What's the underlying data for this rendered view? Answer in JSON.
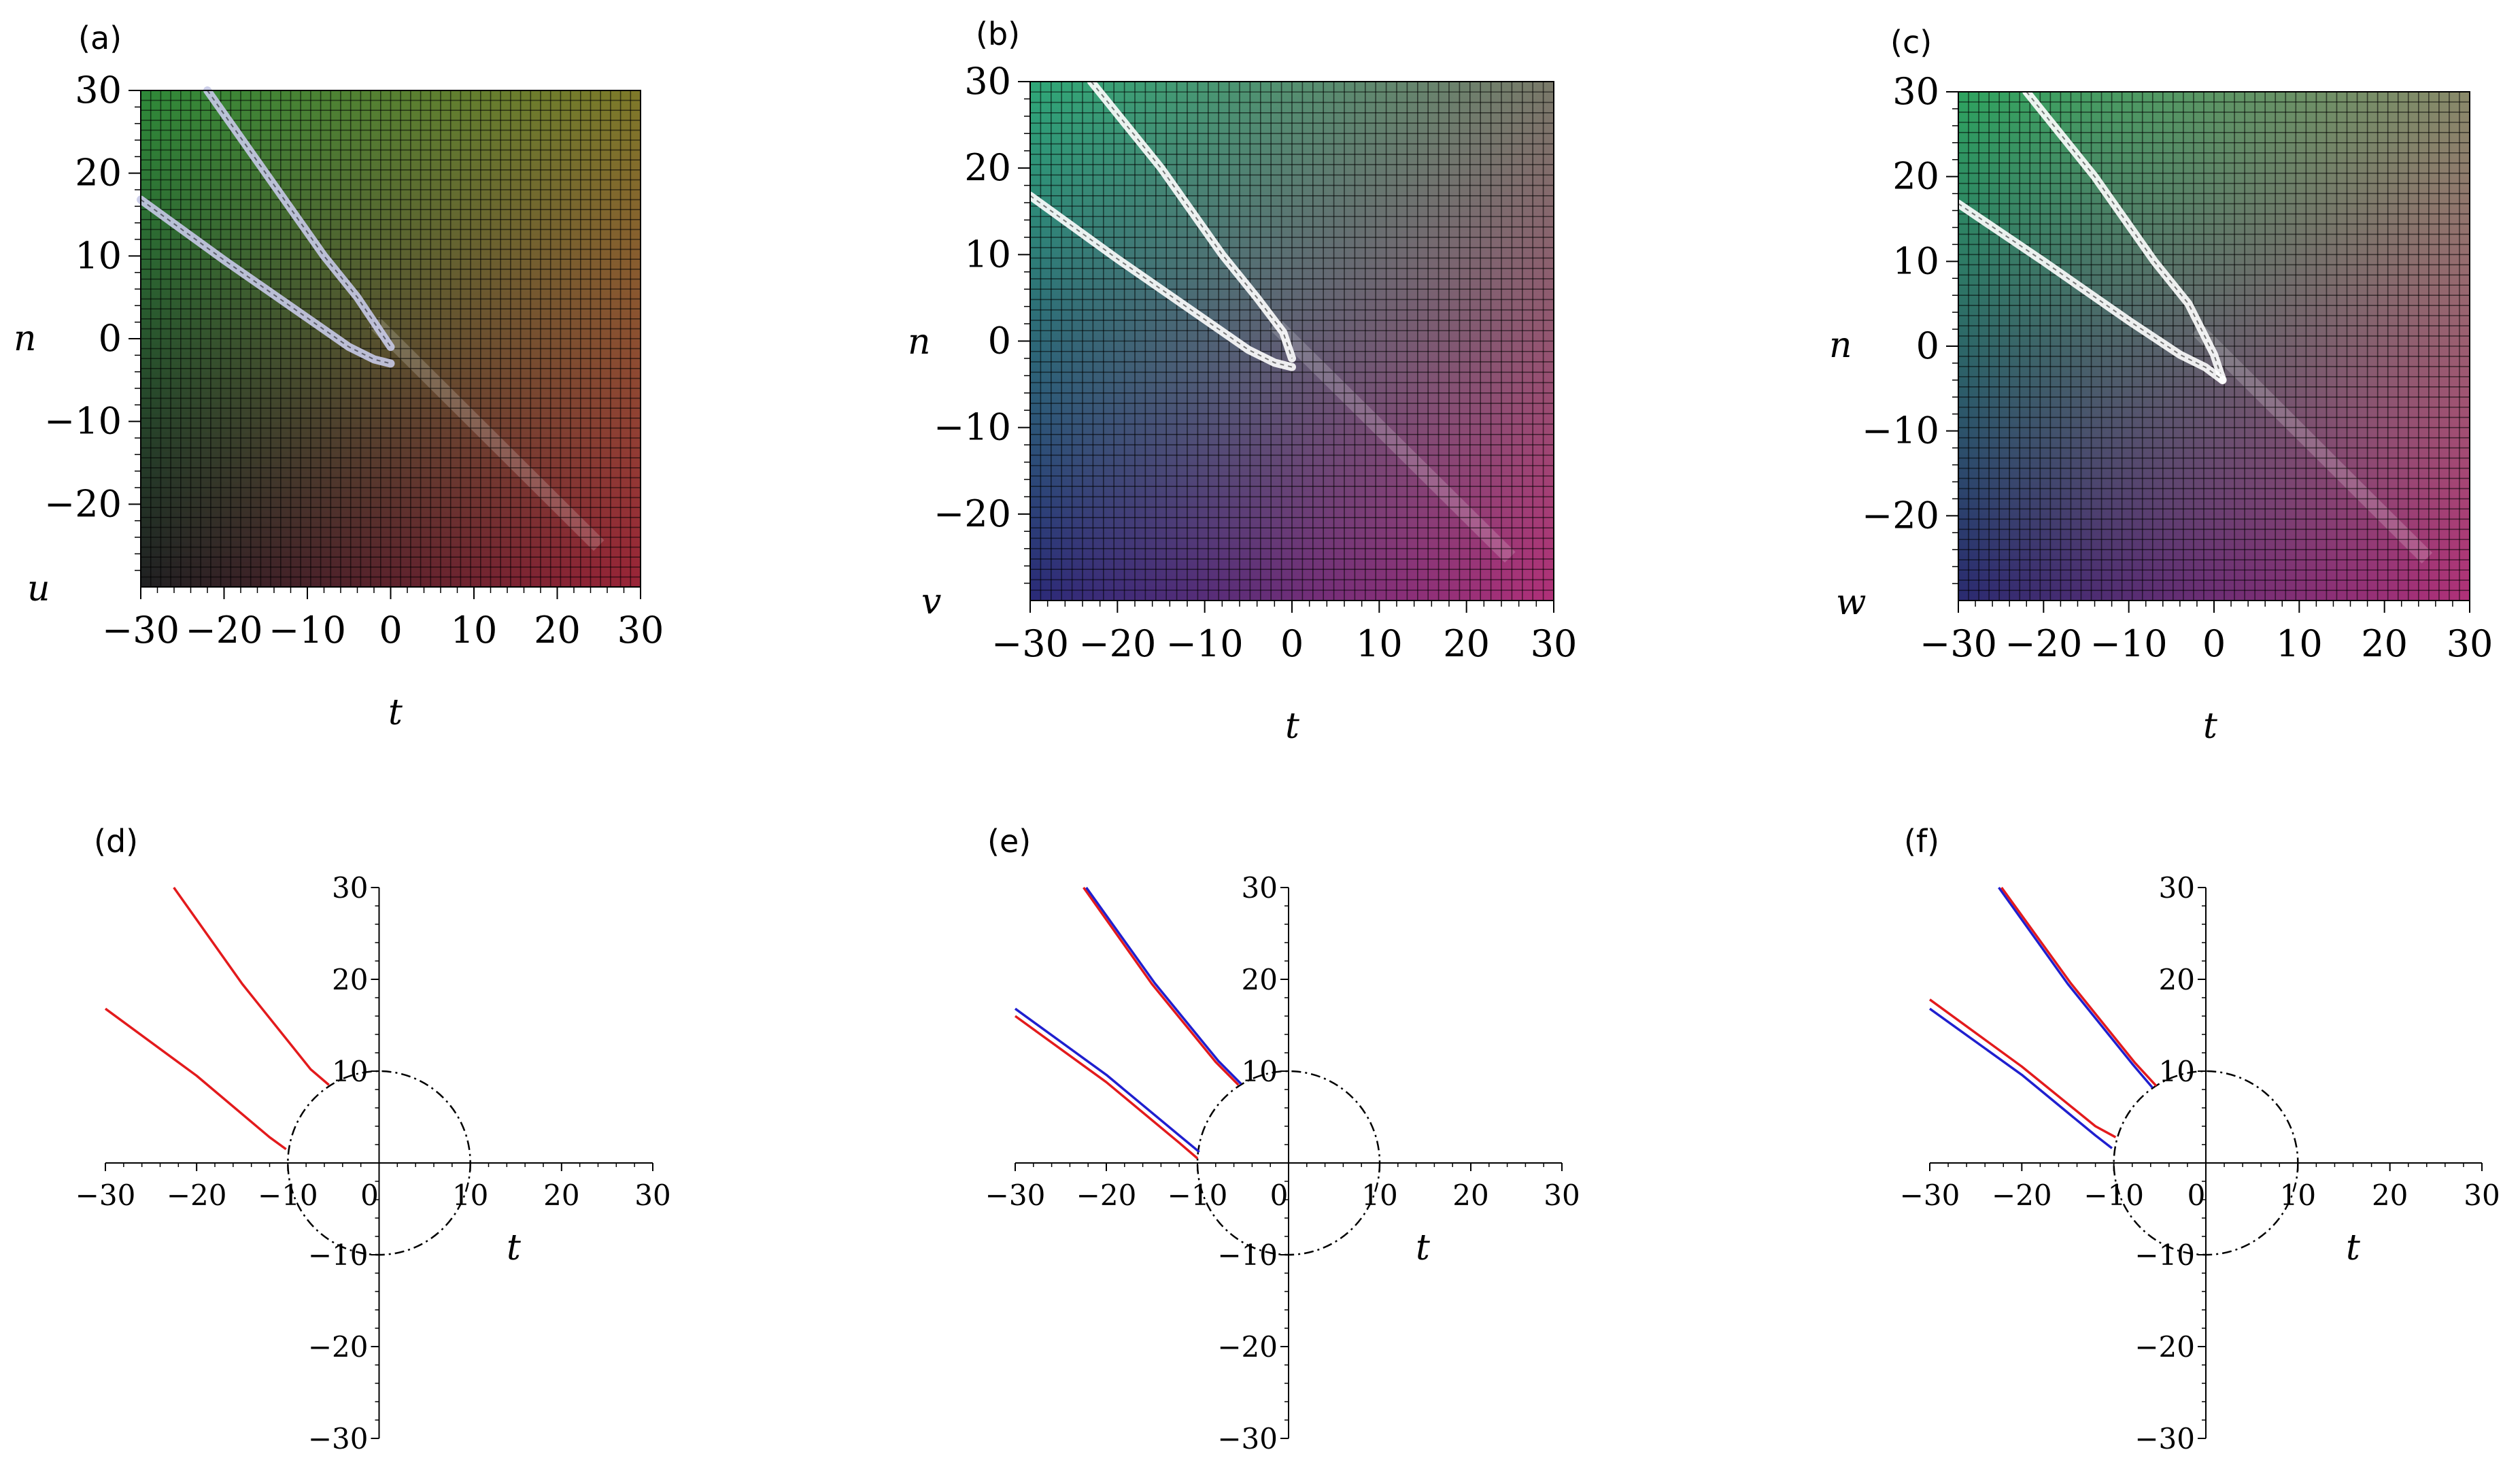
{
  "colors": {
    "density_u": {
      "tl": "#2f8a3a",
      "tr": "#7f7a2a",
      "bl": "#202022",
      "br": "#9a2438"
    },
    "density_v": {
      "tl": "#2fa878",
      "tr": "#7a7a6a",
      "bl": "#2a2a78",
      "br": "#b03078"
    },
    "density_w": {
      "tl": "#2fa460",
      "tr": "#8a8a6a",
      "bl": "#2a2a70",
      "br": "#b03078"
    },
    "ridge_u": "#c8cae8",
    "ridge_vw": "#ffffff",
    "red": "#e31a1c",
    "blue": "#1f1fcf",
    "circle": "#000000"
  },
  "chart_data": [
    {
      "panel": "(a)",
      "type": "heatmap",
      "xlabel": "t",
      "ylabel": "n",
      "zlabel": "u",
      "xlim": [
        -30,
        30
      ],
      "ylim": [
        -30,
        30
      ],
      "xticks": [
        "−30",
        "−20",
        "−10",
        "0",
        "10",
        "20",
        "30"
      ],
      "yticks": [
        "−20",
        "−10",
        "0",
        "10",
        "20",
        "30"
      ],
      "ridges": [
        {
          "x": [
            -22,
            -15,
            -8,
            -4,
            -2,
            0
          ],
          "y": [
            30,
            20,
            10,
            5,
            2,
            -1
          ]
        },
        {
          "x": [
            -30,
            -20,
            -10,
            -5,
            -2,
            0
          ],
          "y": [
            16.8,
            9.5,
            2.5,
            -1,
            -2.5,
            -3
          ]
        }
      ]
    },
    {
      "panel": "(b)",
      "type": "heatmap",
      "xlabel": "t",
      "ylabel": "n",
      "zlabel": "v",
      "xlim": [
        -30,
        30
      ],
      "ylim": [
        -30,
        30
      ],
      "xticks": [
        "−30",
        "−20",
        "−10",
        "0",
        "10",
        "20",
        "30"
      ],
      "yticks": [
        "−20",
        "−10",
        "0",
        "10",
        "20",
        "30"
      ],
      "ridges": [
        {
          "x": [
            -23,
            -15,
            -8,
            -4,
            -1,
            0
          ],
          "y": [
            30,
            20,
            10,
            5,
            1,
            -2
          ]
        },
        {
          "x": [
            -30,
            -20,
            -10,
            -5,
            -2,
            0
          ],
          "y": [
            16.8,
            9.5,
            2.5,
            -1,
            -2.5,
            -3
          ]
        }
      ]
    },
    {
      "panel": "(c)",
      "type": "heatmap",
      "xlabel": "t",
      "ylabel": "n",
      "zlabel": "w",
      "xlim": [
        -30,
        30
      ],
      "ylim": [
        -30,
        30
      ],
      "xticks": [
        "−30",
        "−20",
        "−10",
        "0",
        "10",
        "20",
        "30"
      ],
      "yticks": [
        "−20",
        "−10",
        "0",
        "10",
        "20",
        "30"
      ],
      "ridges": [
        {
          "x": [
            -22,
            -14,
            -7,
            -3,
            0,
            1
          ],
          "y": [
            30,
            20,
            10,
            5,
            -1,
            -4
          ]
        },
        {
          "x": [
            -30,
            -20,
            -10,
            -4,
            -1,
            1
          ],
          "y": [
            16.8,
            10,
            3,
            -1,
            -2.5,
            -4
          ]
        }
      ]
    },
    {
      "panel": "(d)",
      "type": "line",
      "xlabel": "t",
      "ylabel": "",
      "xlim": [
        -30,
        30
      ],
      "ylim": [
        -30,
        30
      ],
      "xticks": [
        "−30",
        "−20",
        "−10",
        "0",
        "10",
        "20",
        "30"
      ],
      "yticks": [
        "−30",
        "−20",
        "−10",
        "10",
        "20",
        "30"
      ],
      "circle": {
        "r": 10
      },
      "series": [
        {
          "color": "red",
          "x": [
            -22.5,
            -15,
            -7.5,
            -5.5
          ],
          "y": [
            30,
            19.5,
            10.2,
            8.5
          ]
        },
        {
          "color": "red",
          "x": [
            -30,
            -20,
            -12,
            -10.2
          ],
          "y": [
            16.8,
            9.5,
            2.8,
            1.5
          ]
        }
      ]
    },
    {
      "panel": "(e)",
      "type": "line",
      "xlabel": "t",
      "ylabel": "",
      "xlim": [
        -30,
        30
      ],
      "ylim": [
        -30,
        30
      ],
      "xticks": [
        "−30",
        "−20",
        "−10",
        "0",
        "10",
        "20",
        "30"
      ],
      "yticks": [
        "−30",
        "−20",
        "−10",
        "10",
        "20",
        "30"
      ],
      "circle": {
        "r": 10
      },
      "series": [
        {
          "color": "red",
          "x": [
            -22.5,
            -15,
            -8,
            -5.5
          ],
          "y": [
            30,
            19.5,
            11,
            8.5
          ]
        },
        {
          "color": "blue",
          "x": [
            -22.2,
            -14.7,
            -7.7,
            -5.2
          ],
          "y": [
            30,
            19.6,
            11.1,
            8.6
          ]
        },
        {
          "color": "red",
          "x": [
            -30,
            -20,
            -12,
            -10
          ],
          "y": [
            16,
            8.8,
            2.2,
            0.5
          ]
        },
        {
          "color": "blue",
          "x": [
            -30,
            -20,
            -12,
            -9.8
          ],
          "y": [
            16.8,
            9.6,
            3,
            1.2
          ]
        }
      ]
    },
    {
      "panel": "(f)",
      "type": "line",
      "xlabel": "t",
      "ylabel": "",
      "xlim": [
        -30,
        30
      ],
      "ylim": [
        -30,
        30
      ],
      "xticks": [
        "−30",
        "−20",
        "−10",
        "0",
        "10",
        "20",
        "30"
      ],
      "yticks": [
        "−30",
        "−20",
        "−10",
        "10",
        "20",
        "30"
      ],
      "circle": {
        "r": 10
      },
      "series": [
        {
          "color": "blue",
          "x": [
            -22.5,
            -15,
            -8,
            -5.8
          ],
          "y": [
            30,
            19.5,
            10.8,
            8.2
          ]
        },
        {
          "color": "red",
          "x": [
            -22.2,
            -14.7,
            -7.7,
            -5.4
          ],
          "y": [
            30,
            19.6,
            10.9,
            8.4
          ]
        },
        {
          "color": "red",
          "x": [
            -30,
            -20,
            -12,
            -9.8
          ],
          "y": [
            17.8,
            10.5,
            4,
            2.8
          ]
        },
        {
          "color": "blue",
          "x": [
            -30,
            -20,
            -12,
            -10.2
          ],
          "y": [
            16.8,
            9.6,
            3,
            1.6
          ]
        }
      ]
    }
  ]
}
